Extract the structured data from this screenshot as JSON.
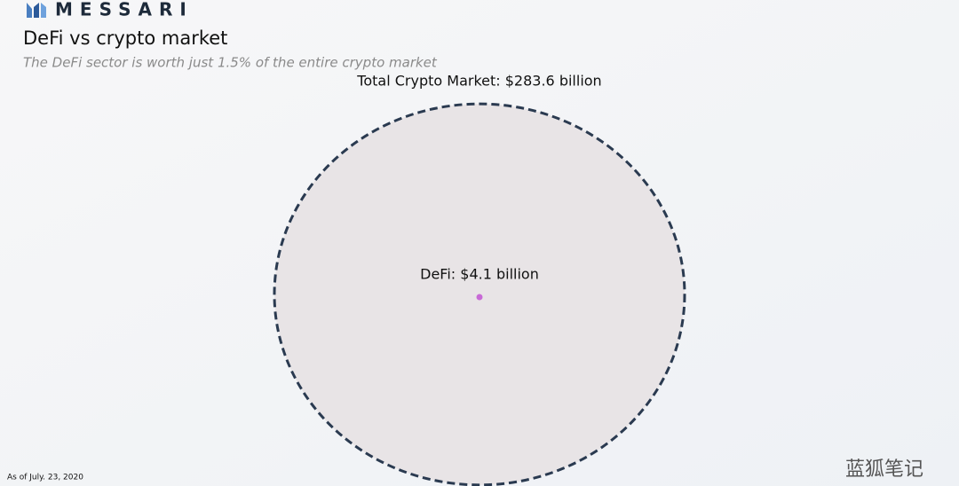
{
  "brand": "MESSARI",
  "chart_data": {
    "type": "bubble",
    "title": "DeFi vs crypto market",
    "subtitle": "The DeFi sector is worth just 1.5% of the entire crypto market",
    "values": [
      283.6,
      4.1
    ],
    "value_labels": [
      "Total Crypto Market: $283.6 billion",
      "DeFi: $4.1 billion"
    ],
    "colors": [
      "#e8e4e6",
      "#c86ad6"
    ],
    "stroke": "#2a3a50",
    "note": "As of July. 23, 2020"
  },
  "watermark": "蓝狐笔记"
}
